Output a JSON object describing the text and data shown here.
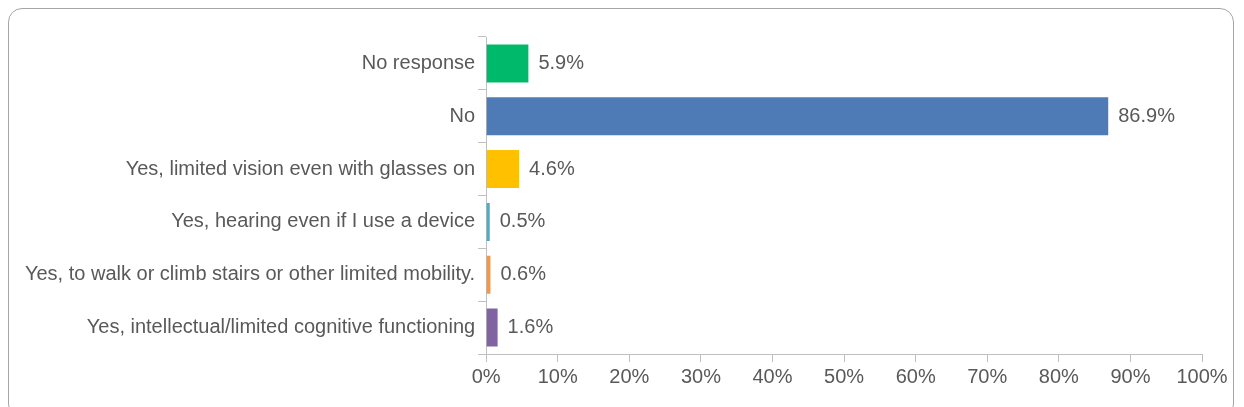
{
  "chart_data": {
    "type": "bar",
    "orientation": "horizontal",
    "categories": [
      "No response",
      "No",
      "Yes, limited vision even with glasses on",
      "Yes, hearing even if I use a device",
      "Yes, to walk or climb stairs or other limited mobility.",
      "Yes, intellectual/limited cognitive functioning"
    ],
    "values": [
      5.9,
      86.9,
      4.6,
      0.5,
      0.6,
      1.6
    ],
    "colors": [
      "#00b96b",
      "#4e7bb5",
      "#ffc000",
      "#4bacc6",
      "#f79646",
      "#8064a2"
    ],
    "value_labels": [
      "5.9%",
      "86.9%",
      "4.6%",
      "0.5%",
      "0.6%",
      "1.6%"
    ],
    "xlim": [
      0,
      100
    ],
    "xticks": [
      {
        "value": 0,
        "label": "0%"
      },
      {
        "value": 10,
        "label": "10%"
      },
      {
        "value": 20,
        "label": "20%"
      },
      {
        "value": 30,
        "label": "30%"
      },
      {
        "value": 40,
        "label": "40%"
      },
      {
        "value": 50,
        "label": "50%"
      },
      {
        "value": 60,
        "label": "60%"
      },
      {
        "value": 70,
        "label": "70%"
      },
      {
        "value": 80,
        "label": "80%"
      },
      {
        "value": 90,
        "label": "90%"
      },
      {
        "value": 100,
        "label": "100%"
      }
    ],
    "grid": false,
    "legend": false
  }
}
